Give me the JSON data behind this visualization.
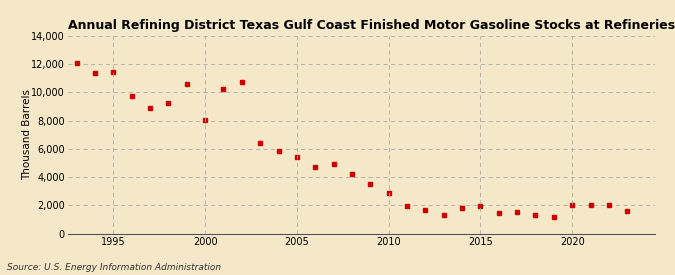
{
  "title": "Annual Refining District Texas Gulf Coast Finished Motor Gasoline Stocks at Refineries",
  "ylabel": "Thousand Barrels",
  "source": "Source: U.S. Energy Information Administration",
  "background_color": "#f5e8c8",
  "plot_bg_color": "#f5e8c8",
  "grid_color": "#aaaaaa",
  "marker_color": "#cc0000",
  "years": [
    1993,
    1994,
    1995,
    1996,
    1997,
    1998,
    1999,
    2000,
    2001,
    2002,
    2003,
    2004,
    2005,
    2006,
    2007,
    2008,
    2009,
    2010,
    2011,
    2012,
    2013,
    2014,
    2015,
    2016,
    2017,
    2018,
    2019,
    2020,
    2021,
    2022,
    2023
  ],
  "values": [
    12100,
    11350,
    11450,
    9750,
    8900,
    9250,
    10600,
    8050,
    10200,
    10750,
    6450,
    5850,
    5400,
    4700,
    4900,
    4200,
    3550,
    2850,
    1980,
    1700,
    1350,
    1800,
    1950,
    1500,
    1550,
    1300,
    1200,
    2000,
    2050,
    2050,
    1600
  ],
  "xlim": [
    1992.5,
    2024.5
  ],
  "ylim": [
    0,
    14000
  ],
  "yticks": [
    0,
    2000,
    4000,
    6000,
    8000,
    10000,
    12000,
    14000
  ],
  "xticks": [
    1995,
    2000,
    2005,
    2010,
    2015,
    2020
  ]
}
